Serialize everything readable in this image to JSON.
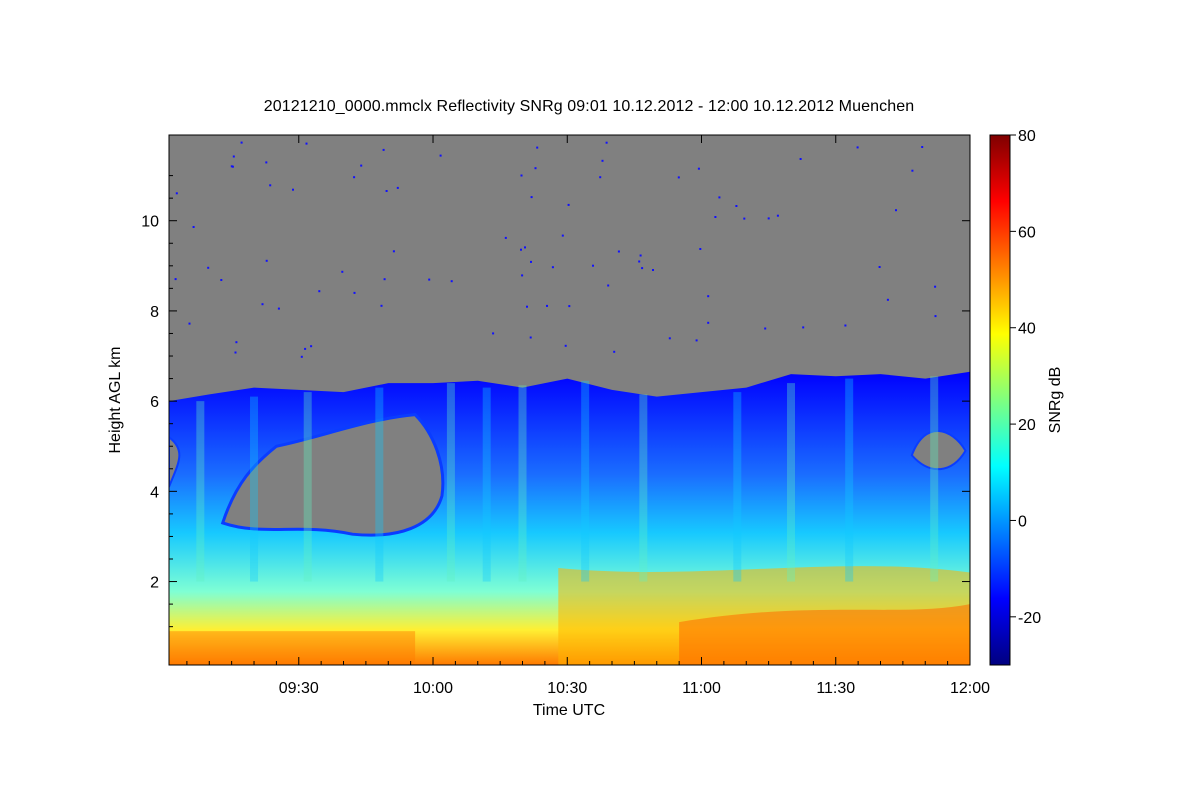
{
  "chart_data": {
    "type": "heatmap",
    "title": "20121210_0000.mmclx Reflectivity SNRg   09:01 10.12.2012 - 12:00 10.12.2012 Muenchen",
    "xlabel": "Time UTC",
    "ylabel": "Height AGL km",
    "colorbar_label": "SNRg dB",
    "x_range_minutes": [
      541,
      720
    ],
    "x_ticks": [
      {
        "minutes": 570,
        "label": "09:30"
      },
      {
        "minutes": 600,
        "label": "10:00"
      },
      {
        "minutes": 630,
        "label": "10:30"
      },
      {
        "minutes": 660,
        "label": "11:00"
      },
      {
        "minutes": 690,
        "label": "11:30"
      },
      {
        "minutes": 720,
        "label": "12:00"
      }
    ],
    "y_range_km": [
      0.15,
      11.9
    ],
    "y_ticks": [
      2,
      4,
      6,
      8,
      10
    ],
    "colorbar_range_db": [
      -30,
      80
    ],
    "colorbar_ticks": [
      -20,
      0,
      20,
      40,
      60,
      80
    ],
    "colormap": [
      "#00007f",
      "#0000ff",
      "#007fff",
      "#00ffff",
      "#7fff7f",
      "#ffff00",
      "#ff7f00",
      "#ff0000",
      "#7f0000"
    ],
    "no_signal_color": "#808080",
    "cloud_top_km": [
      {
        "time": "09:01",
        "km": 6.0
      },
      {
        "time": "09:10",
        "km": 6.15
      },
      {
        "time": "09:20",
        "km": 6.3
      },
      {
        "time": "09:30",
        "km": 6.25
      },
      {
        "time": "09:40",
        "km": 6.2
      },
      {
        "time": "09:50",
        "km": 6.4
      },
      {
        "time": "10:00",
        "km": 6.4
      },
      {
        "time": "10:10",
        "km": 6.45
      },
      {
        "time": "10:20",
        "km": 6.3
      },
      {
        "time": "10:30",
        "km": 6.5
      },
      {
        "time": "10:40",
        "km": 6.25
      },
      {
        "time": "10:50",
        "km": 6.1
      },
      {
        "time": "11:00",
        "km": 6.2
      },
      {
        "time": "11:10",
        "km": 6.3
      },
      {
        "time": "11:20",
        "km": 6.6
      },
      {
        "time": "11:30",
        "km": 6.55
      },
      {
        "time": "11:40",
        "km": 6.6
      },
      {
        "time": "11:50",
        "km": 6.5
      },
      {
        "time": "12:00",
        "km": 6.65
      }
    ]
  }
}
